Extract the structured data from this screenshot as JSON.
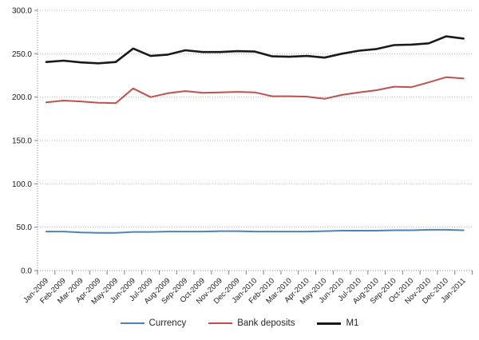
{
  "chart_data": {
    "type": "line",
    "categories": [
      "Jan-2009",
      "Feb-2009",
      "Mar-2009",
      "Apr-2009",
      "May-2009",
      "Jun-2009",
      "Jul-2009",
      "Aug-2009",
      "Sep-2009",
      "Oct-2009",
      "Nov-2009",
      "Dec-2009",
      "Jan-2010",
      "Feb-2010",
      "Mar-2010",
      "Apr-2010",
      "May-2010",
      "Jun-2010",
      "Jul-2010",
      "Aug-2010",
      "Sep-2010",
      "Oct-2010",
      "Nov-2010",
      "Dec-2010",
      "Jan-2011"
    ],
    "series": [
      {
        "name": "Currency",
        "color": "#4F81BD",
        "values": [
          45,
          45,
          44,
          43.5,
          43.5,
          44.5,
          44.5,
          45,
          45,
          45,
          45.5,
          45.5,
          45,
          45,
          45,
          45,
          45.5,
          46,
          46,
          46,
          46.5,
          46.5,
          47,
          47,
          46.5
        ]
      },
      {
        "name": "Bank deposits",
        "color": "#C0504D",
        "values": [
          194,
          196,
          195,
          193.5,
          193,
          210,
          200,
          204.5,
          207,
          205,
          205.5,
          206,
          205.5,
          201,
          201,
          200.5,
          198,
          202.5,
          205.5,
          208,
          212,
          211.5,
          217,
          223,
          221.5
        ]
      },
      {
        "name": "M1",
        "color": "#1a1a1a",
        "values": [
          240.5,
          242,
          240,
          239,
          240.5,
          256,
          247.5,
          249,
          254,
          252,
          252,
          253,
          252.5,
          247,
          246.5,
          247.5,
          245.5,
          250,
          253.5,
          255.5,
          260,
          260.5,
          262,
          270,
          267.5
        ]
      }
    ],
    "ylim": [
      0,
      300
    ],
    "ytick_step": 50,
    "ytick_labels": [
      "0.0",
      "50.0",
      "100.0",
      "150.0",
      "200.0",
      "250.0",
      "300.0"
    ],
    "xlabel": "",
    "ylabel": "",
    "grid": true,
    "x_label_angle": -45,
    "legend_position": "bottom"
  },
  "colors": {
    "gridline": "#BFBFBF",
    "axis": "#808080",
    "tick_text": "#1a1a1a"
  }
}
